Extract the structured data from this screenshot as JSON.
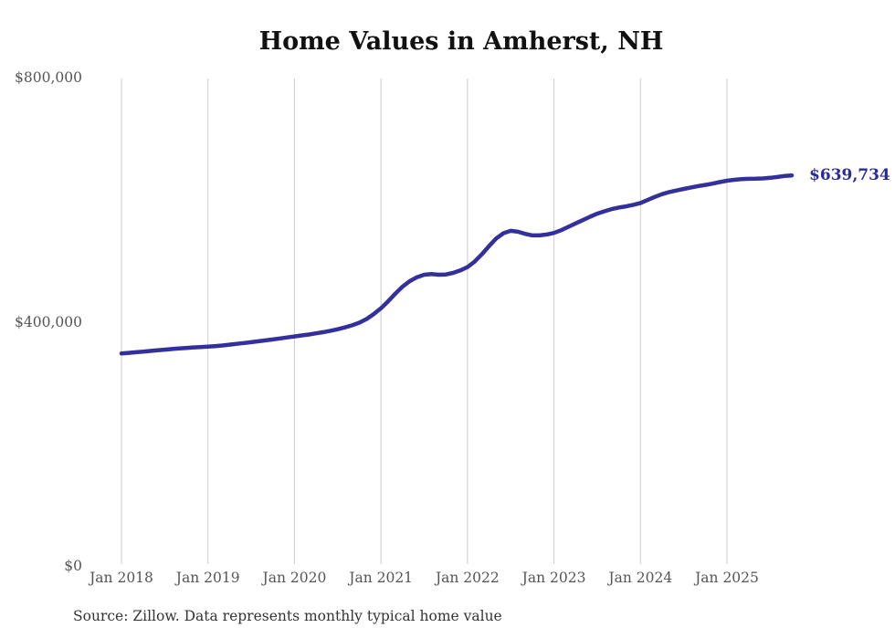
{
  "chart_data": {
    "type": "line",
    "title": "Home Values in Amherst, NH",
    "series_name": "Monthly typical home value",
    "source": "Source: Zillow. Data represents monthly typical home value",
    "final_value": 639734,
    "final_value_label": "$639,734",
    "line_color": "#33309e",
    "final_label_color": "#2b2a9c",
    "gridline_color": "#cccccc",
    "axis_text_color": "#555555",
    "ylim": [
      0,
      800000
    ],
    "grid": "vertical-only",
    "legend": "none",
    "y_ticks": [
      {
        "value": 0,
        "label": "$0"
      },
      {
        "value": 400000,
        "label": "$400,000"
      },
      {
        "value": 800000,
        "label": "$800,000"
      }
    ],
    "x_tick_labels": [
      "Jan 2018",
      "Jan 2019",
      "Jan 2020",
      "Jan 2021",
      "Jan 2022",
      "Jan 2023",
      "Jan 2024",
      "Jan 2025"
    ],
    "x": [
      "2018-01",
      "2018-02",
      "2018-03",
      "2018-04",
      "2018-05",
      "2018-06",
      "2018-07",
      "2018-08",
      "2018-09",
      "2018-10",
      "2018-11",
      "2018-12",
      "2019-01",
      "2019-02",
      "2019-03",
      "2019-04",
      "2019-05",
      "2019-06",
      "2019-07",
      "2019-08",
      "2019-09",
      "2019-10",
      "2019-11",
      "2019-12",
      "2020-01",
      "2020-02",
      "2020-03",
      "2020-04",
      "2020-05",
      "2020-06",
      "2020-07",
      "2020-08",
      "2020-09",
      "2020-10",
      "2020-11",
      "2020-12",
      "2021-01",
      "2021-02",
      "2021-03",
      "2021-04",
      "2021-05",
      "2021-06",
      "2021-07",
      "2021-08",
      "2021-09",
      "2021-10",
      "2021-11",
      "2021-12",
      "2022-01",
      "2022-02",
      "2022-03",
      "2022-04",
      "2022-05",
      "2022-06",
      "2022-07",
      "2022-08",
      "2022-09",
      "2022-10",
      "2022-11",
      "2022-12",
      "2023-01",
      "2023-02",
      "2023-03",
      "2023-04",
      "2023-05",
      "2023-06",
      "2023-07",
      "2023-08",
      "2023-09",
      "2023-10",
      "2023-11",
      "2023-12",
      "2024-01",
      "2024-02",
      "2024-03",
      "2024-04",
      "2024-05",
      "2024-06",
      "2024-07",
      "2024-08",
      "2024-09",
      "2024-10",
      "2024-11",
      "2024-12",
      "2025-01",
      "2025-02",
      "2025-03",
      "2025-04",
      "2025-05",
      "2025-06",
      "2025-07",
      "2025-08",
      "2025-09",
      "2025-10"
    ],
    "values": [
      348000,
      349000,
      350000,
      351000,
      352200,
      353300,
      354300,
      355300,
      356200,
      357100,
      358000,
      358600,
      359200,
      360100,
      361100,
      362400,
      363800,
      365100,
      366500,
      368000,
      369500,
      371000,
      372600,
      374300,
      376000,
      377500,
      379100,
      381000,
      383000,
      385200,
      387700,
      390700,
      394200,
      398500,
      404500,
      412500,
      422000,
      433500,
      446000,
      457500,
      466500,
      473000,
      477000,
      478000,
      477000,
      477500,
      480000,
      484000,
      489500,
      498500,
      510500,
      524000,
      536500,
      545000,
      549000,
      547500,
      544000,
      541500,
      541500,
      543000,
      545500,
      550000,
      555500,
      561000,
      566500,
      572000,
      577000,
      581000,
      584500,
      587000,
      589000,
      591500,
      594500,
      599500,
      604500,
      609000,
      612500,
      615000,
      617500,
      620000,
      622200,
      624200,
      626200,
      628800,
      631000,
      632500,
      633500,
      634200,
      634300,
      634800,
      635800,
      637200,
      638800,
      639734
    ]
  }
}
